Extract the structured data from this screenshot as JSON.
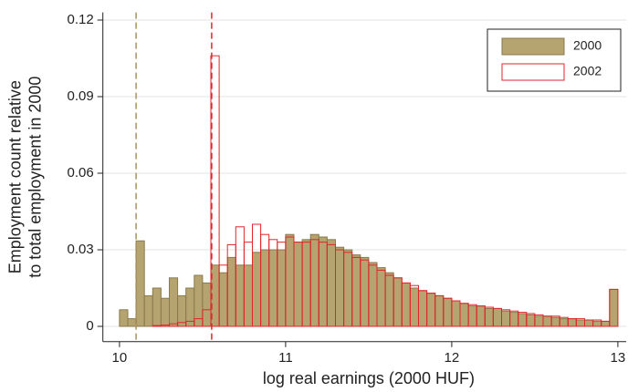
{
  "chart_data": {
    "type": "histogram",
    "xlabel": "log real earnings (2000 HUF)",
    "ylabel": [
      "Employment count relative",
      "to total employment in 2000"
    ],
    "bins": [
      10,
      10.05,
      10.1,
      10.15,
      10.2,
      10.25,
      10.3,
      10.35,
      10.4,
      10.45,
      10.5,
      10.55,
      10.6,
      10.65,
      10.7,
      10.75,
      10.8,
      10.85,
      10.9,
      10.95,
      11,
      11.05,
      11.1,
      11.15,
      11.2,
      11.25,
      11.3,
      11.35,
      11.4,
      11.45,
      11.5,
      11.55,
      11.6,
      11.65,
      11.7,
      11.75,
      11.8,
      11.85,
      11.9,
      11.95,
      12,
      12.05,
      12.1,
      12.15,
      12.2,
      12.25,
      12.3,
      12.35,
      12.4,
      12.45,
      12.5,
      12.55,
      12.6,
      12.65,
      12.7,
      12.75,
      12.8,
      12.85,
      12.9,
      12.95,
      13
    ],
    "series": [
      {
        "name": "2000",
        "color": "#b5a370",
        "edge": "#8a7a4c",
        "filled": true,
        "values": [
          0.0065,
          0.003,
          0.0335,
          0.012,
          0.015,
          0.011,
          0.019,
          0.012,
          0.015,
          0.02,
          0.017,
          0.024,
          0.021,
          0.027,
          0.024,
          0.024,
          0.029,
          0.03,
          0.03,
          0.03,
          0.036,
          0.033,
          0.034,
          0.036,
          0.035,
          0.034,
          0.031,
          0.03,
          0.028,
          0.027,
          0.025,
          0.023,
          0.021,
          0.019,
          0.017,
          0.015,
          0.014,
          0.013,
          0.012,
          0.011,
          0.01,
          0.009,
          0.008,
          0.008,
          0.007,
          0.007,
          0.006,
          0.0055,
          0.005,
          0.0045,
          0.004,
          0.004,
          0.0035,
          0.003,
          0.003,
          0.0025,
          0.0025,
          0.002,
          0.002,
          0.0145
        ]
      },
      {
        "name": "2002",
        "color": "#e0262b",
        "edge": "#e0262b",
        "filled": false,
        "values": [
          0,
          0,
          0,
          0,
          0.0003,
          0.0005,
          0.001,
          0.0015,
          0.002,
          0.003,
          0.0065,
          0.106,
          0.024,
          0.032,
          0.039,
          0.033,
          0.04,
          0.036,
          0.034,
          0.033,
          0.035,
          0.033,
          0.033,
          0.034,
          0.033,
          0.032,
          0.03,
          0.029,
          0.027,
          0.026,
          0.024,
          0.022,
          0.02,
          0.019,
          0.017,
          0.016,
          0.014,
          0.013,
          0.012,
          0.011,
          0.01,
          0.009,
          0.0085,
          0.008,
          0.0075,
          0.007,
          0.0065,
          0.006,
          0.0055,
          0.005,
          0.0045,
          0.004,
          0.004,
          0.0035,
          0.003,
          0.003,
          0.0025,
          0.0025,
          0.002,
          0.0145
        ]
      }
    ],
    "reference_lines": [
      {
        "x": 10.1,
        "color": "#a8925f"
      },
      {
        "x": 10.555,
        "color": "#e0262b"
      }
    ],
    "xlim": [
      9.9,
      13.05
    ],
    "ylim": [
      -0.006,
      0.123
    ],
    "xticks": [
      10,
      11,
      12,
      13
    ],
    "yticks": [
      0,
      0.03,
      0.06,
      0.09,
      0.12
    ],
    "grid": true,
    "legend": "top-right"
  }
}
